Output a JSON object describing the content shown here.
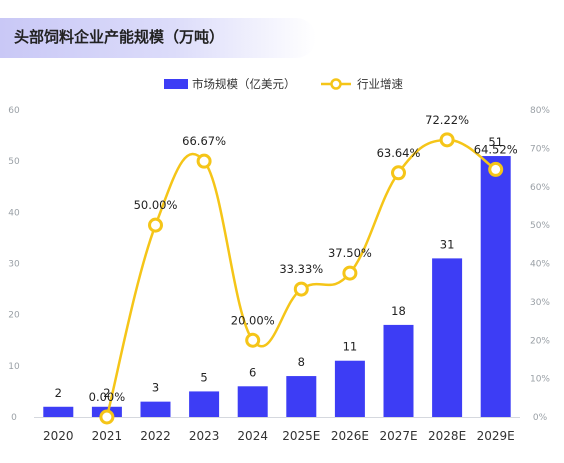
{
  "title": "头部饲料企业产能规模（万吨）",
  "colors": {
    "bar": "#3d3df5",
    "line": "#f5c518",
    "marker_fill": "#ffffff"
  },
  "chart_data": {
    "type": "bar",
    "categories": [
      "2020",
      "2021",
      "2022",
      "2023",
      "2024",
      "2025E",
      "2026E",
      "2027E",
      "2028E",
      "2029E"
    ],
    "series": [
      {
        "name": "市场规模（亿美元）",
        "type": "bar",
        "axis": "left",
        "values": [
          2,
          2,
          3,
          5,
          6,
          8,
          11,
          18,
          31,
          51
        ],
        "labels": [
          "2",
          "2",
          "3",
          "5",
          "6",
          "8",
          "11",
          "18",
          "31",
          "51"
        ]
      },
      {
        "name": "行业增速",
        "type": "line",
        "axis": "right",
        "values": [
          null,
          0.0,
          50.0,
          66.67,
          20.0,
          33.33,
          37.5,
          63.64,
          72.22,
          64.52
        ],
        "labels": [
          "",
          "0.00%",
          "50.00%",
          "66.67%",
          "20.00%",
          "33.33%",
          "37.50%",
          "63.64%",
          "72.22%",
          "64.52%"
        ]
      }
    ],
    "y_left": {
      "ylim": [
        0,
        60
      ],
      "ticks": [
        "0",
        "10",
        "20",
        "30",
        "40",
        "50",
        "60"
      ]
    },
    "y_right": {
      "ylim": [
        0,
        80
      ],
      "ticks": [
        "0%",
        "10%",
        "20%",
        "30%",
        "40%",
        "50%",
        "60%",
        "70%",
        "80%"
      ]
    },
    "legend_position": "top-center",
    "grid": false
  }
}
